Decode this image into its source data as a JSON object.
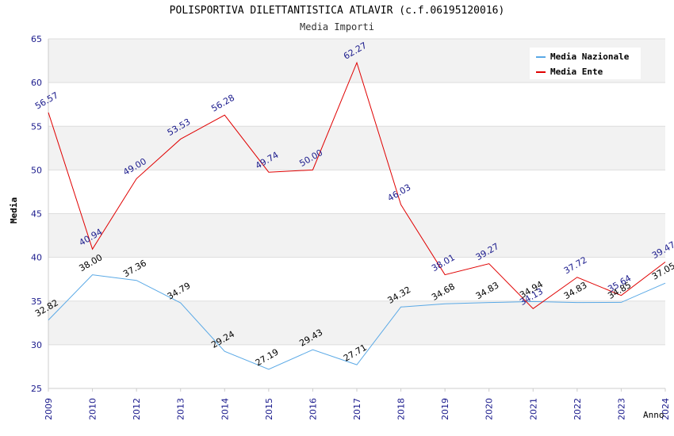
{
  "chart_data": {
    "type": "line",
    "title": "POLISPORTIVA DILETTANTISTICA ATLAVIR (c.f.06195120016)",
    "subtitle": "Media Importi",
    "xlabel": "Anno",
    "ylabel": "Media",
    "ylim": [
      25,
      65
    ],
    "yticks": [
      25,
      30,
      35,
      40,
      45,
      50,
      55,
      60,
      65
    ],
    "categories": [
      "2009",
      "2010",
      "2012",
      "2013",
      "2014",
      "2015",
      "2016",
      "2017",
      "2018",
      "2019",
      "2020",
      "2021",
      "2022",
      "2023",
      "2024"
    ],
    "legend_position": "top-right",
    "grid": true,
    "series": [
      {
        "name": "Media Nazionale",
        "color": "#5aa9e6",
        "label_color": "#000000",
        "values": [
          32.82,
          38.0,
          37.36,
          34.79,
          29.24,
          27.19,
          29.43,
          27.71,
          34.32,
          34.68,
          34.83,
          34.94,
          34.83,
          34.85,
          37.05
        ]
      },
      {
        "name": "Media Ente",
        "color": "#e00000",
        "label_color": "#1a1a8c",
        "values": [
          56.57,
          40.94,
          49.0,
          53.53,
          56.28,
          49.74,
          50.0,
          62.27,
          46.03,
          38.01,
          39.27,
          34.13,
          37.72,
          35.64,
          39.47
        ]
      }
    ]
  }
}
